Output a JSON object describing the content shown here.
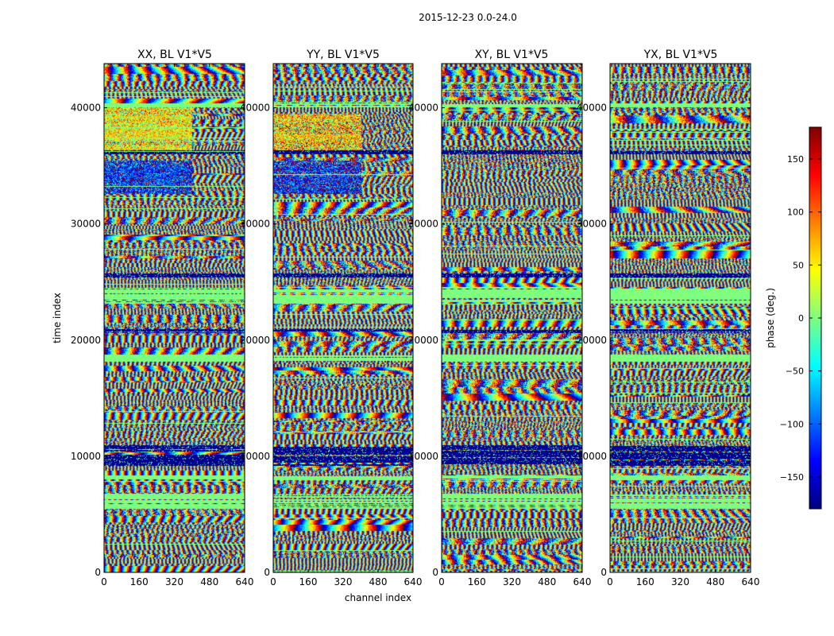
{
  "figure": {
    "suptitle": "2015-12-23 0.0-24.0"
  },
  "chart_data": [
    {
      "type": "heatmap",
      "title": "XX, BL V1*V5",
      "xlabel": "",
      "ylabel": "time index",
      "xlim": [
        0,
        640
      ],
      "ylim": [
        0,
        43800
      ],
      "xticks": [
        "0",
        "160",
        "320",
        "480",
        "640"
      ],
      "xtick_values": [
        0,
        160,
        320,
        480,
        640
      ],
      "yticks": [
        "0",
        "10000",
        "20000",
        "30000",
        "40000"
      ],
      "ytick_values": [
        0,
        10000,
        20000,
        30000,
        40000
      ],
      "seed": 11,
      "band_spans": [
        [
          36300,
          40100,
          0,
          400,
          45
        ],
        [
          32600,
          35500,
          0,
          400,
          -120
        ]
      ]
    },
    {
      "type": "heatmap",
      "title": "YY, BL V1*V5",
      "xlabel": "channel index",
      "ylabel": "",
      "xlim": [
        0,
        640
      ],
      "ylim": [
        0,
        43800
      ],
      "xticks": [
        "0",
        "160",
        "320",
        "480",
        "640"
      ],
      "xtick_values": [
        0,
        160,
        320,
        480,
        640
      ],
      "yticks": [
        "0",
        "10000",
        "20000",
        "30000",
        "40000"
      ],
      "ytick_values": [
        0,
        10000,
        20000,
        30000,
        40000
      ],
      "seed": 23,
      "band_spans": [
        [
          36300,
          39500,
          0,
          400,
          60
        ],
        [
          32600,
          35500,
          0,
          400,
          -130
        ]
      ]
    },
    {
      "type": "heatmap",
      "title": "XY, BL V1*V5",
      "xlabel": "",
      "ylabel": "",
      "xlim": [
        0,
        640
      ],
      "ylim": [
        0,
        43800
      ],
      "xticks": [
        "0",
        "160",
        "320",
        "480",
        "640"
      ],
      "xtick_values": [
        0,
        160,
        320,
        480,
        640
      ],
      "yticks": [
        "0",
        "10000",
        "20000",
        "30000",
        "40000"
      ],
      "ytick_values": [
        0,
        10000,
        20000,
        30000,
        40000
      ],
      "seed": 37,
      "band_spans": []
    },
    {
      "type": "heatmap",
      "title": "YX, BL V1*V5",
      "xlabel": "",
      "ylabel": "",
      "xlim": [
        0,
        640
      ],
      "ylim": [
        0,
        43800
      ],
      "xticks": [
        "0",
        "160",
        "320",
        "480",
        "640"
      ],
      "xtick_values": [
        0,
        160,
        320,
        480,
        640
      ],
      "yticks": [
        "0",
        "10000",
        "20000",
        "30000",
        "40000"
      ],
      "ytick_values": [
        0,
        10000,
        20000,
        30000,
        40000
      ],
      "seed": 51,
      "band_spans": []
    }
  ],
  "colorbar": {
    "label": "phase (deg.)",
    "range": [
      -180,
      180
    ],
    "ticks": [
      "150",
      "100",
      "50",
      "0",
      "−50",
      "−100",
      "−150"
    ],
    "tick_values": [
      150,
      100,
      50,
      0,
      -50,
      -100,
      -150
    ],
    "colormap": "jet",
    "stops": [
      "#00007f",
      "#0000ff",
      "#007fff",
      "#00ffff",
      "#7fff7f",
      "#ffff00",
      "#ff7f00",
      "#ff0000",
      "#7f0000"
    ],
    "flagged_rows": {
      "dark_blue_bands": [
        [
          9200,
          11000
        ],
        [
          36000,
          36400
        ],
        [
          20600,
          21000
        ],
        [
          25400,
          25800
        ]
      ],
      "light_green_bands": [
        [
          5500,
          6800
        ],
        [
          23200,
          24600
        ],
        [
          18200,
          18800
        ],
        [
          8000,
          8400
        ],
        [
          40100,
          40400
        ]
      ]
    }
  }
}
